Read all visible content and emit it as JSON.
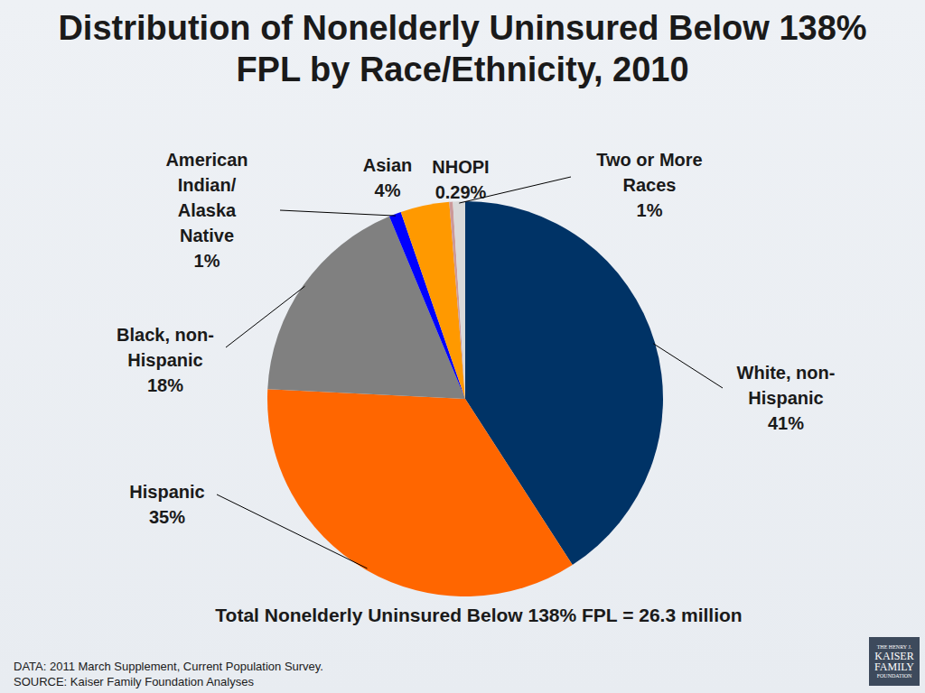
{
  "chart_data": {
    "type": "pie",
    "title": "Distribution of Nonelderly Uninsured Below 138% FPL by Race/Ethnicity, 2010",
    "categories": [
      "White, non-Hispanic",
      "Hispanic",
      "Black, non-Hispanic",
      "American Indian/Alaska Native",
      "Asian",
      "NHOPI",
      "Two or More Races"
    ],
    "values": [
      41,
      35,
      18,
      1,
      4,
      0.29,
      1
    ],
    "value_labels": [
      "41%",
      "35%",
      "18%",
      "1%",
      "4%",
      "0.29%",
      "1%"
    ],
    "colors": [
      "#003366",
      "#ff6600",
      "#808080",
      "#0000ff",
      "#ff9900",
      "#cc9999",
      "#d9d9d9"
    ],
    "data_labels": true,
    "annotations": [
      "Total Nonelderly Uninsured Below 138% FPL = 26.3 million",
      "DATA:  2011 March Supplement, Current Population Survey.",
      "SOURCE:  Kaiser Family Foundation Analyses"
    ],
    "logo": [
      "THE HENRY J.",
      "KAISER",
      "FAMILY",
      "FOUNDATION"
    ]
  }
}
